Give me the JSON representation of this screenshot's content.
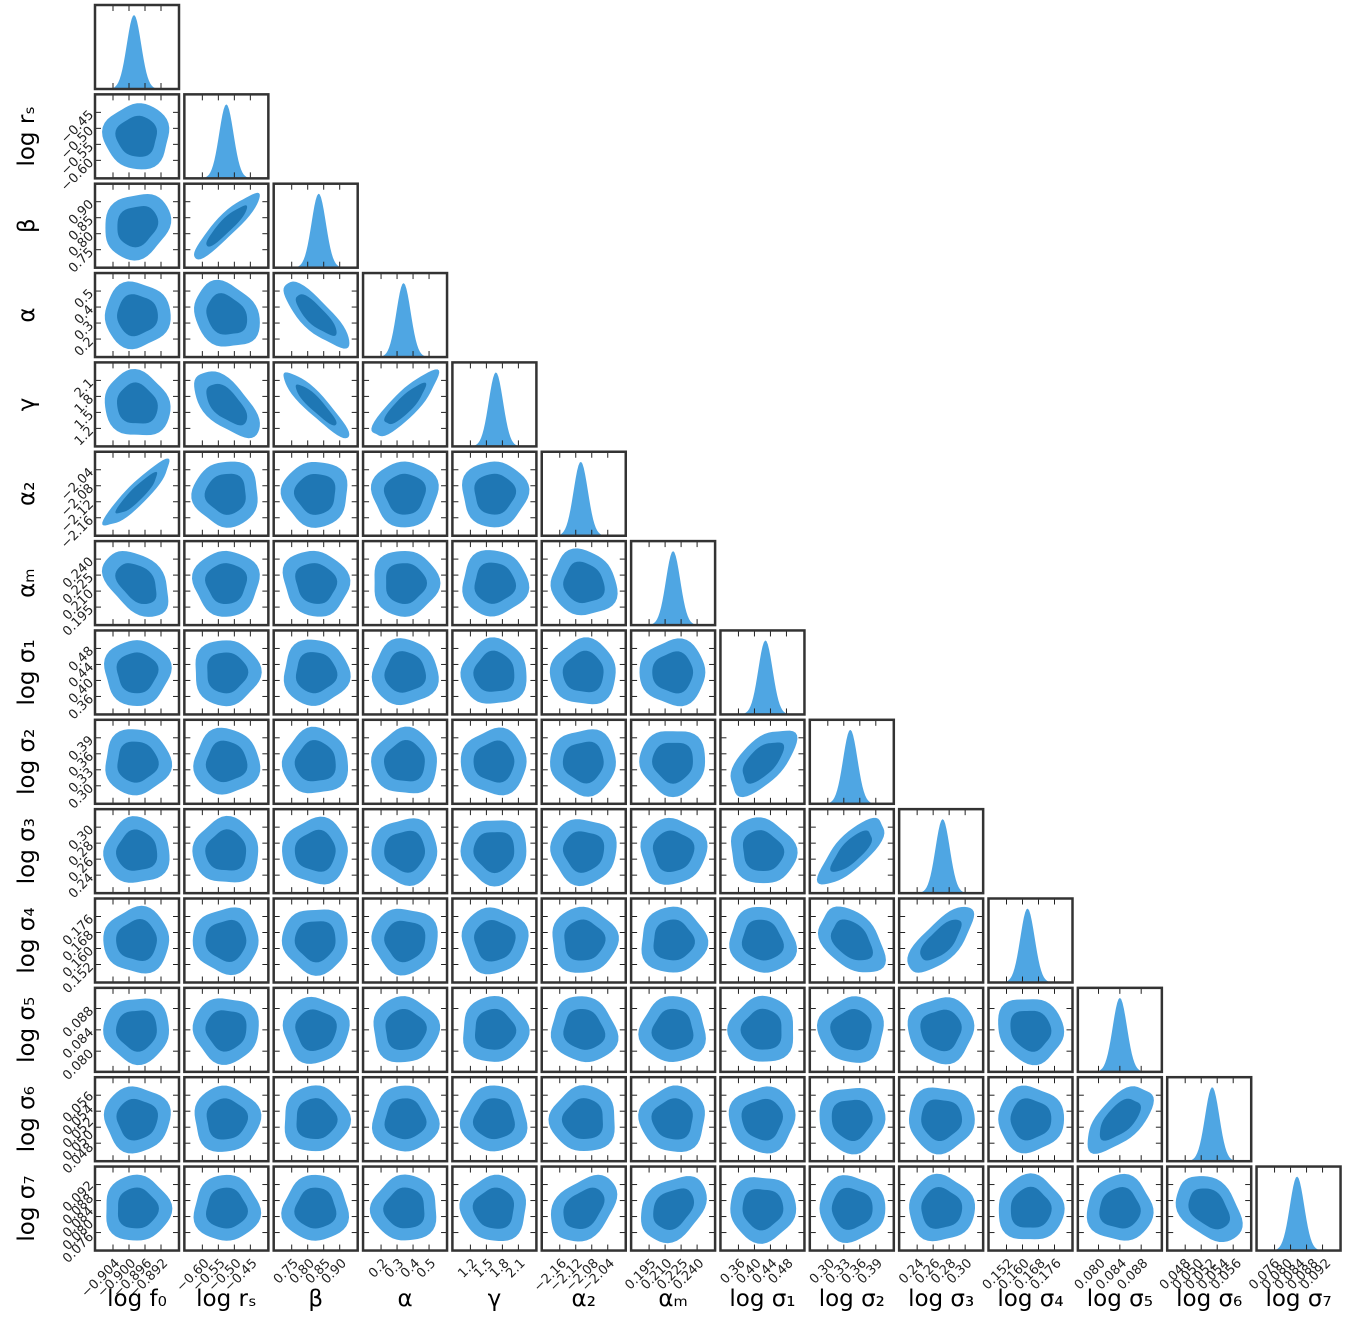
{
  "chart_data": {
    "type": "corner",
    "grid": false,
    "colors": {
      "outer": "#4fa6e3",
      "inner": "#1f77b4",
      "hist": "#4fa6e3",
      "frame": "#333333",
      "tick": "#222222"
    },
    "params": [
      {
        "label": "log f₀",
        "ticks": [
          -0.904,
          -0.9,
          -0.896,
          -0.892
        ],
        "tick_labels": [
          "−0.904",
          "−0.900",
          "−0.896",
          "−0.892"
        ]
      },
      {
        "label": "log rₛ",
        "ticks": [
          -0.6,
          -0.55,
          -0.5,
          -0.45
        ],
        "tick_labels": [
          "−0.60",
          "−0.55",
          "−0.50",
          "−0.45"
        ]
      },
      {
        "label": "β",
        "ticks": [
          0.75,
          0.8,
          0.85,
          0.9
        ],
        "tick_labels": [
          "0.75",
          "0.80",
          "0.85",
          "0.90"
        ]
      },
      {
        "label": "α",
        "ticks": [
          0.2,
          0.3,
          0.4,
          0.5
        ],
        "tick_labels": [
          "0.2",
          "0.3",
          "0.4",
          "0.5"
        ]
      },
      {
        "label": "γ",
        "ticks": [
          1.2,
          1.5,
          1.8,
          2.1
        ],
        "tick_labels": [
          "1.2",
          "1.5",
          "1.8",
          "2.1"
        ]
      },
      {
        "label": "α₂",
        "ticks": [
          -2.16,
          -2.12,
          -2.08,
          -2.04
        ],
        "tick_labels": [
          "−2.16",
          "−2.12",
          "−2.08",
          "−2.04"
        ]
      },
      {
        "label": "αₘ",
        "ticks": [
          0.195,
          0.21,
          0.225,
          0.24
        ],
        "tick_labels": [
          "0.195",
          "0.210",
          "0.225",
          "0.240"
        ]
      },
      {
        "label": "log σ₁",
        "ticks": [
          0.36,
          0.4,
          0.44,
          0.48
        ],
        "tick_labels": [
          "0.36",
          "0.40",
          "0.44",
          "0.48"
        ]
      },
      {
        "label": "log σ₂",
        "ticks": [
          0.3,
          0.33,
          0.36,
          0.39
        ],
        "tick_labels": [
          "0.30",
          "0.33",
          "0.36",
          "0.39"
        ]
      },
      {
        "label": "log σ₃",
        "ticks": [
          0.24,
          0.26,
          0.28,
          0.3
        ],
        "tick_labels": [
          "0.24",
          "0.26",
          "0.28",
          "0.30"
        ]
      },
      {
        "label": "log σ₄",
        "ticks": [
          0.152,
          0.16,
          0.168,
          0.176
        ],
        "tick_labels": [
          "0.152",
          "0.160",
          "0.168",
          "0.176"
        ]
      },
      {
        "label": "log σ₅",
        "ticks": [
          0.08,
          0.084,
          0.088
        ],
        "tick_labels": [
          "0.080",
          "0.084",
          "0.088"
        ]
      },
      {
        "label": "log σ₆",
        "ticks": [
          0.048,
          0.05,
          0.052,
          0.054,
          0.056
        ],
        "tick_labels": [
          "0.048",
          "0.050",
          "0.052",
          "0.054",
          "0.056"
        ]
      },
      {
        "label": "log σ₇",
        "ticks": [
          0.076,
          0.08,
          0.084,
          0.088,
          0.092
        ],
        "tick_labels": [
          "0.076",
          "0.080",
          "0.084",
          "0.088",
          "0.092"
        ]
      }
    ],
    "correlations": [
      {
        "row": 1,
        "col": 0,
        "rho": 0.0
      },
      {
        "row": 2,
        "col": 0,
        "rho": 0.15
      },
      {
        "row": 2,
        "col": 1,
        "rho": 0.9
      },
      {
        "row": 3,
        "col": 0,
        "rho": 0.0
      },
      {
        "row": 3,
        "col": 1,
        "rho": -0.2
      },
      {
        "row": 3,
        "col": 2,
        "rho": -0.8
      },
      {
        "row": 4,
        "col": 0,
        "rho": -0.1
      },
      {
        "row": 4,
        "col": 1,
        "rho": -0.6
      },
      {
        "row": 4,
        "col": 2,
        "rho": -0.9
      },
      {
        "row": 4,
        "col": 3,
        "rho": 0.85
      },
      {
        "row": 5,
        "col": 0,
        "rho": 0.9
      },
      {
        "row": 6,
        "col": 0,
        "rho": -0.4
      },
      {
        "row": 6,
        "col": 2,
        "rho": -0.1
      },
      {
        "row": 6,
        "col": 5,
        "rho": -0.1
      },
      {
        "row": 7,
        "col": 0,
        "rho": 0.0
      },
      {
        "row": 8,
        "col": 7,
        "rho": 0.6
      },
      {
        "row": 9,
        "col": 7,
        "rho": -0.1
      },
      {
        "row": 9,
        "col": 8,
        "rho": 0.75
      },
      {
        "row": 10,
        "col": 7,
        "rho": -0.1
      },
      {
        "row": 10,
        "col": 8,
        "rho": -0.4
      },
      {
        "row": 10,
        "col": 9,
        "rho": 0.7
      },
      {
        "row": 11,
        "col": 5,
        "rho": -0.1
      },
      {
        "row": 11,
        "col": 10,
        "rho": -0.1
      },
      {
        "row": 12,
        "col": 11,
        "rho": 0.6
      },
      {
        "row": 13,
        "col": 5,
        "rho": 0.35
      },
      {
        "row": 13,
        "col": 6,
        "rho": 0.3
      },
      {
        "row": 13,
        "col": 12,
        "rho": -0.35
      }
    ],
    "credible_levels": [
      "68%",
      "95%"
    ]
  }
}
